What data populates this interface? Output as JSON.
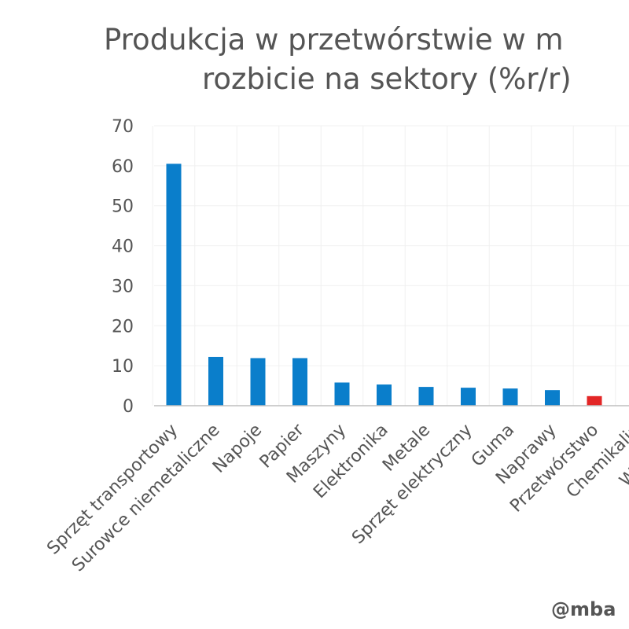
{
  "chart_data": {
    "type": "bar",
    "title_lines": [
      "Produkcja w przetwórstwie w m",
      "rozbicie na sektory (%r/r)"
    ],
    "xlabel": "",
    "ylabel": "",
    "ylim": [
      0,
      70
    ],
    "yticks": [
      0,
      10,
      20,
      30,
      40,
      50,
      60,
      70
    ],
    "grid": true,
    "legend": "none",
    "categories": [
      "Sprzęt transportowy",
      "Surowce niemetaliczne",
      "Napoje",
      "Papier",
      "Maszyny",
      "Elektronika",
      "Metale",
      "Sprzęt elektryczny",
      "Guma",
      "Naprawy",
      "Przetwórstwo",
      "Chemikalia",
      "Wyroby z"
    ],
    "values": [
      60.5,
      12.2,
      11.9,
      11.9,
      5.8,
      5.3,
      4.7,
      4.5,
      4.3,
      3.9,
      2.4,
      null,
      null
    ],
    "colors": {
      "default": "#0a7ecb",
      "highlight": "#e32626",
      "highlight_category": "Przetwórstwo"
    }
  },
  "watermark": "@mba"
}
